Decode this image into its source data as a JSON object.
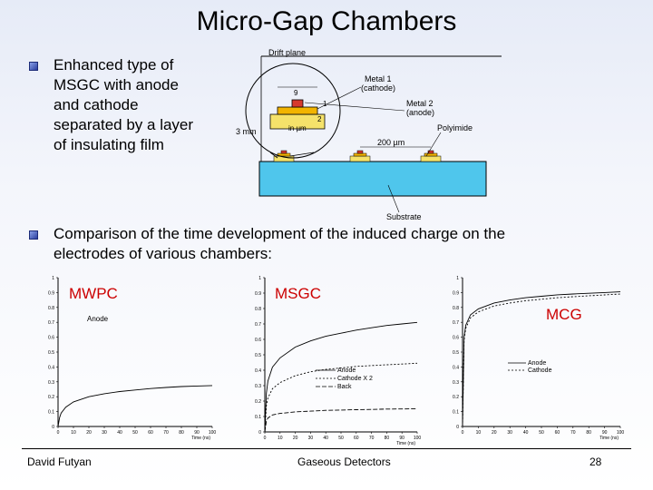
{
  "slide": {
    "title": "Micro-Gap Chambers",
    "bullets": [
      "Enhanced type of MSGC with anode and cathode separated by a layer of insulating film",
      "Comparison of the time development of the induced charge on the electrodes of various chambers:"
    ],
    "bullet1_lines": [
      "Enhanced type of",
      "MSGC with anode",
      "and cathode",
      "separated by a layer",
      "of insulating film"
    ],
    "bullet2_lines": [
      "Comparison of the time development of the induced charge on the",
      "electrodes of various chambers:"
    ]
  },
  "diagram": {
    "labels": {
      "drift_plane": "Drift plane",
      "metal1": "Metal 1",
      "cathode": "(cathode)",
      "metal2": "Metal 2",
      "anode": "(anode)",
      "polyimide": "Polyimide",
      "dim_9": "9",
      "dim_1": "1",
      "dim_2": "2",
      "dim_um": "in µm",
      "dim_3mm": "3 mm",
      "dim_200um": "200 µm",
      "substrate": "Substrate"
    },
    "colors": {
      "substrate": "#4fc6ec",
      "metal1": "#f2b400",
      "metal2": "#d63a2e",
      "polyimide": "#f5e26a"
    }
  },
  "chart_labels": {
    "mwpc": "MWPC",
    "msgc": "MSGC",
    "mcg": "MCG",
    "mwpc_anode": "Anode",
    "msgc_legend": [
      "Anode",
      "Cathode X 2",
      "Back"
    ],
    "mcg_legend": [
      "Anode",
      "Cathode"
    ],
    "x_unit": "Time (ns)"
  },
  "chart_data": [
    {
      "type": "line",
      "title": "MWPC",
      "x": [
        0,
        1,
        2,
        5,
        10,
        20,
        30,
        40,
        50,
        60,
        70,
        80,
        90,
        100
      ],
      "series": [
        {
          "name": "Anode",
          "values": [
            0,
            0.06,
            0.09,
            0.13,
            0.165,
            0.2,
            0.22,
            0.235,
            0.245,
            0.255,
            0.262,
            0.268,
            0.272,
            0.275
          ]
        }
      ],
      "xlim": [
        0,
        100
      ],
      "ylim": [
        0,
        1
      ],
      "xticks": [
        "0",
        "10",
        "20",
        "30",
        "40",
        "50",
        "60",
        "70",
        "80",
        "90",
        "100"
      ],
      "yticks": [
        "0",
        "0.1",
        "0.2",
        "0.3",
        "0.4",
        "0.5",
        "0.6",
        "0.7",
        "0.8",
        "0.9",
        "1"
      ]
    },
    {
      "type": "line",
      "title": "MSGC",
      "x": [
        0,
        1,
        2,
        5,
        10,
        20,
        30,
        40,
        50,
        60,
        70,
        80,
        90,
        100
      ],
      "series": [
        {
          "name": "Anode",
          "values": [
            0,
            0.25,
            0.33,
            0.42,
            0.48,
            0.55,
            0.59,
            0.62,
            0.64,
            0.66,
            0.675,
            0.69,
            0.7,
            0.71
          ]
        },
        {
          "name": "Cathode X 2",
          "values": [
            0,
            0.17,
            0.22,
            0.28,
            0.32,
            0.365,
            0.39,
            0.405,
            0.415,
            0.425,
            0.43,
            0.435,
            0.44,
            0.445
          ]
        },
        {
          "name": "Back",
          "values": [
            0,
            0.07,
            0.09,
            0.11,
            0.12,
            0.13,
            0.135,
            0.14,
            0.142,
            0.144,
            0.146,
            0.148,
            0.149,
            0.15
          ]
        }
      ],
      "xlim": [
        0,
        100
      ],
      "ylim": [
        0,
        1
      ],
      "xticks": [
        "0",
        "10",
        "20",
        "30",
        "40",
        "50",
        "60",
        "70",
        "80",
        "90",
        "100"
      ],
      "yticks": [
        "0",
        "0.1",
        "0.2",
        "0.3",
        "0.4",
        "0.5",
        "0.6",
        "0.7",
        "0.8",
        "0.9",
        "1"
      ]
    },
    {
      "type": "line",
      "title": "MCG",
      "x": [
        0,
        1,
        2,
        5,
        10,
        20,
        30,
        40,
        50,
        60,
        70,
        80,
        90,
        100
      ],
      "series": [
        {
          "name": "Anode",
          "values": [
            0,
            0.6,
            0.68,
            0.75,
            0.79,
            0.83,
            0.85,
            0.865,
            0.875,
            0.885,
            0.89,
            0.895,
            0.9,
            0.905
          ]
        },
        {
          "name": "Cathode",
          "values": [
            0,
            0.58,
            0.66,
            0.73,
            0.77,
            0.81,
            0.83,
            0.845,
            0.855,
            0.865,
            0.872,
            0.878,
            0.884,
            0.89
          ]
        }
      ],
      "xlim": [
        0,
        100
      ],
      "ylim": [
        0,
        1
      ],
      "xticks": [
        "0",
        "10",
        "20",
        "30",
        "40",
        "50",
        "60",
        "70",
        "80",
        "90",
        "100"
      ],
      "yticks": [
        "0",
        "0.1",
        "0.2",
        "0.3",
        "0.4",
        "0.5",
        "0.6",
        "0.7",
        "0.8",
        "0.9",
        "1"
      ]
    }
  ],
  "footer": {
    "author": "David Futyan",
    "course": "Gaseous Detectors",
    "page": "28"
  }
}
